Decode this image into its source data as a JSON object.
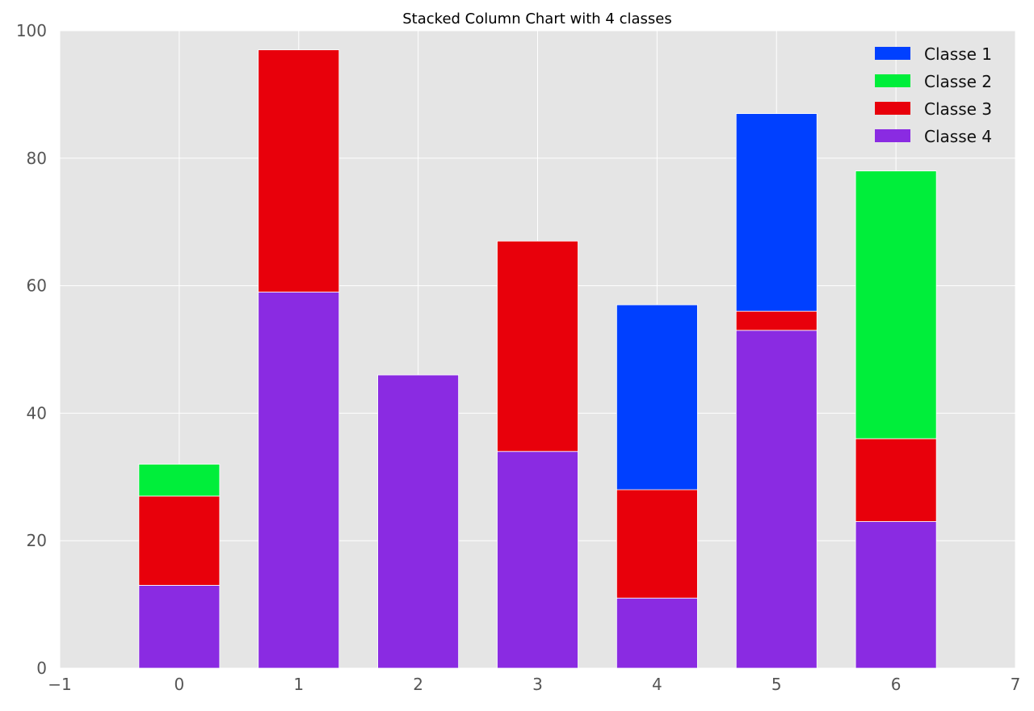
{
  "chart_data": {
    "type": "bar",
    "stacked": true,
    "title": "Stacked Column Chart with 4 classes",
    "xlabel": "",
    "ylabel": "",
    "categories": [
      0,
      1,
      2,
      3,
      4,
      5,
      6
    ],
    "xlim": [
      -1,
      7
    ],
    "ylim": [
      0,
      100
    ],
    "xticks": [
      "−1",
      "0",
      "1",
      "2",
      "3",
      "4",
      "5",
      "6",
      "7"
    ],
    "xtick_values": [
      -1,
      0,
      1,
      2,
      3,
      4,
      5,
      6,
      7
    ],
    "yticks": [
      0,
      20,
      40,
      60,
      80,
      100
    ],
    "grid": true,
    "legend_position": "top-right",
    "stack_order": [
      "Classe 4",
      "Classe 3",
      "Classe 2",
      "Classe 1"
    ],
    "series": [
      {
        "name": "Classe 1",
        "color": "#0040ff",
        "values": [
          0,
          0,
          0,
          0,
          29,
          31,
          0
        ]
      },
      {
        "name": "Classe 2",
        "color": "#00ee3a",
        "values": [
          5,
          0,
          0,
          0,
          0,
          0,
          42
        ]
      },
      {
        "name": "Classe 3",
        "color": "#e8000b",
        "values": [
          14,
          38,
          0,
          33,
          17,
          3,
          13
        ]
      },
      {
        "name": "Classe 4",
        "color": "#8a2be2",
        "values": [
          13,
          59,
          46,
          34,
          11,
          53,
          23
        ]
      }
    ]
  },
  "colors": {
    "plot_background": "#e5e5e5",
    "grid": "#ffffff"
  }
}
